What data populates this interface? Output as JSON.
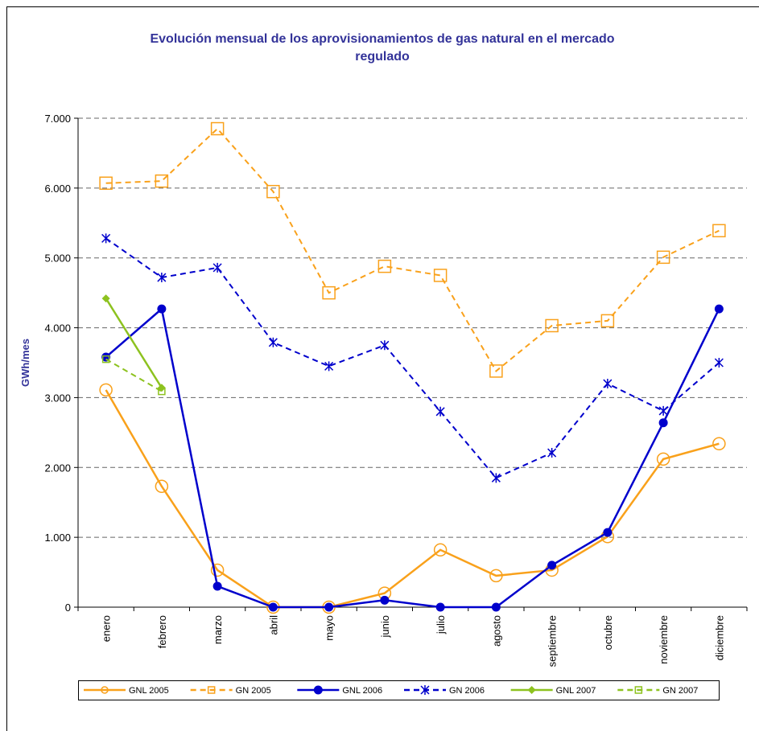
{
  "chart_data": {
    "type": "line",
    "title": "Evolución mensual de los aprovisionamientos de gas natural en el mercado regulado",
    "y_label": "GWh/mes",
    "categories": [
      "enero",
      "febrero",
      "marzo",
      "abril",
      "mayo",
      "junio",
      "julio",
      "agosto",
      "septiembre",
      "octubre",
      "noviembre",
      "diciembre"
    ],
    "ylim": [
      0,
      7000
    ],
    "yticks": [
      0,
      {
        "value": 1000,
        "label": "1.000"
      },
      {
        "value": 2000,
        "label": "2.000"
      },
      {
        "value": 3000,
        "label": "3.000"
      },
      {
        "value": 4000,
        "label": "4.000"
      },
      {
        "value": 5000,
        "label": "5.000"
      },
      {
        "value": 6000,
        "label": "6.000"
      },
      {
        "value": 7000,
        "label": "7.000"
      }
    ],
    "grid": true,
    "legend": "bottom",
    "series": [
      {
        "name": "GNL 2005",
        "color": "#f9a11b",
        "dashed": false,
        "marker": "circle-open",
        "values": [
          3110,
          1730,
          530,
          0,
          0,
          200,
          820,
          450,
          530,
          1010,
          2120,
          2340
        ]
      },
      {
        "name": "GN 2005",
        "color": "#f9a11b",
        "dashed": true,
        "marker": "square-open",
        "values": [
          6070,
          6100,
          6850,
          5950,
          4500,
          4880,
          4750,
          3380,
          4030,
          4100,
          5010,
          5390
        ]
      },
      {
        "name": "GNL 2006",
        "color": "#0000cc",
        "dashed": false,
        "marker": "circle",
        "values": [
          3580,
          4270,
          300,
          0,
          0,
          100,
          0,
          0,
          600,
          1070,
          2640,
          4270
        ]
      },
      {
        "name": "GN 2006",
        "color": "#0000cc",
        "dashed": true,
        "marker": "star",
        "values": [
          5280,
          4720,
          4860,
          3790,
          3450,
          3750,
          2800,
          1850,
          2210,
          3200,
          2810,
          3500
        ]
      },
      {
        "name": "GNL 2007",
        "color": "#8dc21f",
        "dashed": false,
        "marker": "diamond",
        "values": [
          4420,
          3140,
          null,
          null,
          null,
          null,
          null,
          null,
          null,
          null,
          null,
          null
        ]
      },
      {
        "name": "GN 2007",
        "color": "#8dc21f",
        "dashed": true,
        "marker": "square-small",
        "values": [
          3550,
          3090,
          null,
          null,
          null,
          null,
          null,
          null,
          null,
          null,
          null,
          null
        ]
      }
    ]
  }
}
